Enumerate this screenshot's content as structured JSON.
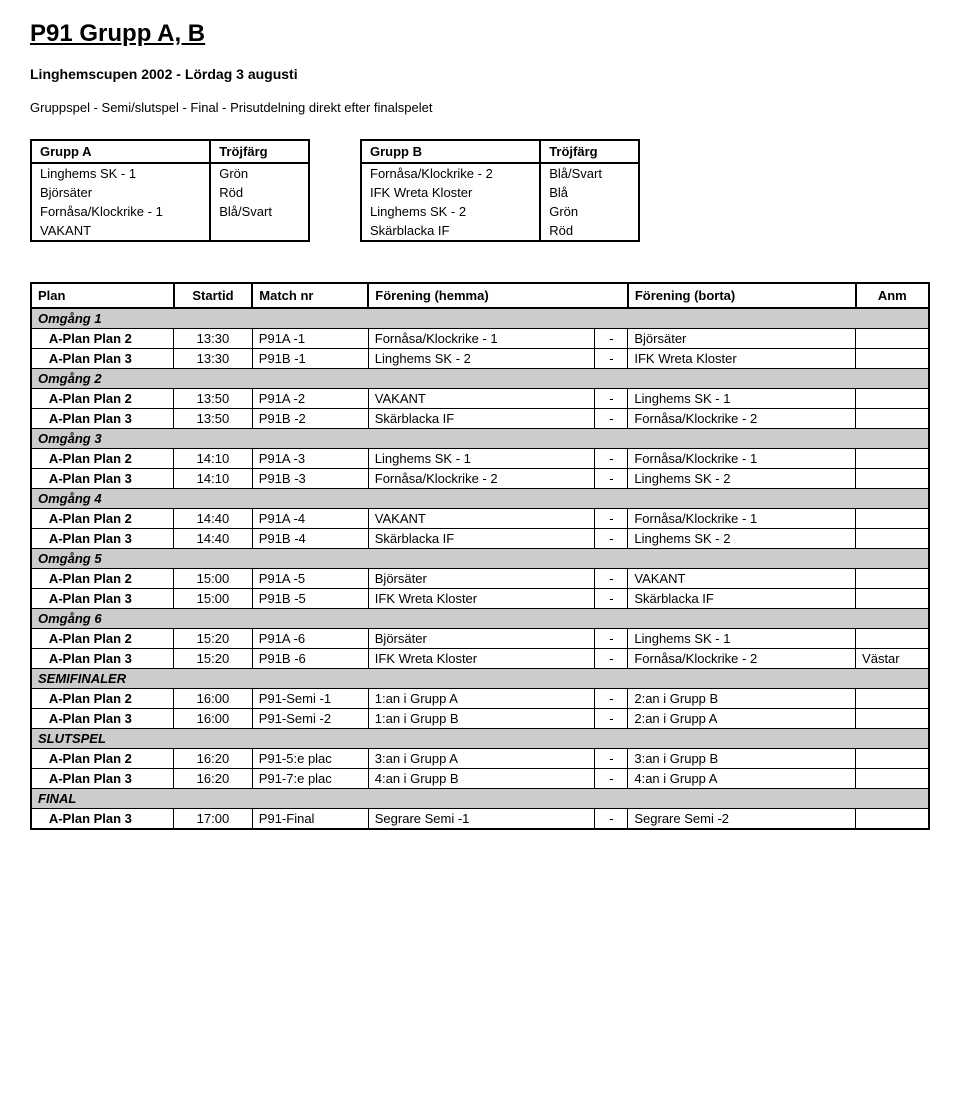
{
  "title": "P91 Grupp  A, B",
  "subtitle": "Linghemscupen 2002 - Lördag 3 augusti",
  "format": "Gruppspel - Semi/slutspel - Final  - Prisutdelning direkt efter finalspelet",
  "groups": [
    {
      "name": "Grupp A",
      "color_header": "Tröjfärg",
      "rows": [
        {
          "team": "Linghems SK - 1",
          "color": "Grön"
        },
        {
          "team": "Björsäter",
          "color": "Röd"
        },
        {
          "team": "Fornåsa/Klockrike - 1",
          "color": "Blå/Svart"
        },
        {
          "team": "VAKANT",
          "color": ""
        }
      ]
    },
    {
      "name": "Grupp B",
      "color_header": "Tröjfärg",
      "rows": [
        {
          "team": "Fornåsa/Klockrike - 2",
          "color": "Blå/Svart"
        },
        {
          "team": "IFK Wreta Kloster",
          "color": "Blå"
        },
        {
          "team": "Linghems SK - 2",
          "color": "Grön"
        },
        {
          "team": "Skärblacka IF",
          "color": "Röd"
        }
      ]
    }
  ],
  "schedule_headers": {
    "plan": "Plan",
    "startid": "Startid",
    "match_nr": "Match nr",
    "hemma": "Förening (hemma)",
    "borta": "Förening (borta)",
    "anm": "Anm"
  },
  "colors": {
    "round_bg": "#cccccc",
    "border": "#000000",
    "background": "#ffffff"
  },
  "rounds": [
    {
      "label": "Omgång 1",
      "matches": [
        {
          "plan": "A-Plan Plan 2",
          "start": "13:30",
          "nr": "P91A -1",
          "home": "Fornåsa/Klockrike - 1",
          "away": "Björsäter",
          "anm": ""
        },
        {
          "plan": "A-Plan Plan 3",
          "start": "13:30",
          "nr": "P91B -1",
          "home": "Linghems SK - 2",
          "away": "IFK Wreta Kloster",
          "anm": ""
        }
      ]
    },
    {
      "label": "Omgång 2",
      "matches": [
        {
          "plan": "A-Plan Plan 2",
          "start": "13:50",
          "nr": "P91A -2",
          "home": "VAKANT",
          "away": "Linghems SK - 1",
          "anm": ""
        },
        {
          "plan": "A-Plan Plan 3",
          "start": "13:50",
          "nr": "P91B -2",
          "home": "Skärblacka IF",
          "away": "Fornåsa/Klockrike - 2",
          "anm": ""
        }
      ]
    },
    {
      "label": "Omgång 3",
      "matches": [
        {
          "plan": "A-Plan Plan 2",
          "start": "14:10",
          "nr": "P91A -3",
          "home": "Linghems SK - 1",
          "away": "Fornåsa/Klockrike - 1",
          "anm": ""
        },
        {
          "plan": "A-Plan Plan 3",
          "start": "14:10",
          "nr": "P91B -3",
          "home": "Fornåsa/Klockrike - 2",
          "away": "Linghems SK - 2",
          "anm": ""
        }
      ]
    },
    {
      "label": "Omgång 4",
      "matches": [
        {
          "plan": "A-Plan Plan 2",
          "start": "14:40",
          "nr": "P91A -4",
          "home": "VAKANT",
          "away": "Fornåsa/Klockrike - 1",
          "anm": ""
        },
        {
          "plan": "A-Plan Plan 3",
          "start": "14:40",
          "nr": "P91B -4",
          "home": "Skärblacka IF",
          "away": "Linghems SK - 2",
          "anm": ""
        }
      ]
    },
    {
      "label": "Omgång 5",
      "matches": [
        {
          "plan": "A-Plan Plan 2",
          "start": "15:00",
          "nr": "P91A -5",
          "home": "Björsäter",
          "away": "VAKANT",
          "anm": ""
        },
        {
          "plan": "A-Plan Plan 3",
          "start": "15:00",
          "nr": "P91B -5",
          "home": "IFK Wreta Kloster",
          "away": "Skärblacka IF",
          "anm": ""
        }
      ]
    },
    {
      "label": "Omgång 6",
      "matches": [
        {
          "plan": "A-Plan Plan 2",
          "start": "15:20",
          "nr": "P91A -6",
          "home": "Björsäter",
          "away": "Linghems SK - 1",
          "anm": ""
        },
        {
          "plan": "A-Plan Plan 3",
          "start": "15:20",
          "nr": "P91B -6",
          "home": "IFK Wreta Kloster",
          "away": "Fornåsa/Klockrike - 2",
          "anm": "Västar"
        }
      ]
    },
    {
      "label": "SEMIFINALER",
      "matches": [
        {
          "plan": "A-Plan Plan 2",
          "start": "16:00",
          "nr": "P91-Semi -1",
          "home": "1:an i Grupp A",
          "away": "2:an i Grupp B",
          "anm": ""
        },
        {
          "plan": "A-Plan Plan 3",
          "start": "16:00",
          "nr": "P91-Semi -2",
          "home": "1:an i Grupp B",
          "away": "2:an i Grupp A",
          "anm": ""
        }
      ]
    },
    {
      "label": "SLUTSPEL",
      "matches": [
        {
          "plan": "A-Plan Plan 2",
          "start": "16:20",
          "nr": "P91-5:e plac",
          "home": "3:an i Grupp A",
          "away": "3:an i Grupp B",
          "anm": ""
        },
        {
          "plan": "A-Plan Plan 3",
          "start": "16:20",
          "nr": "P91-7:e plac",
          "home": "4:an i Grupp B",
          "away": "4:an i Grupp A",
          "anm": ""
        }
      ]
    },
    {
      "label": "FINAL",
      "matches": [
        {
          "plan": "A-Plan Plan 3",
          "start": "17:00",
          "nr": "P91-Final",
          "home": "Segrare Semi -1",
          "away": "Segrare Semi -2",
          "anm": ""
        }
      ]
    }
  ]
}
